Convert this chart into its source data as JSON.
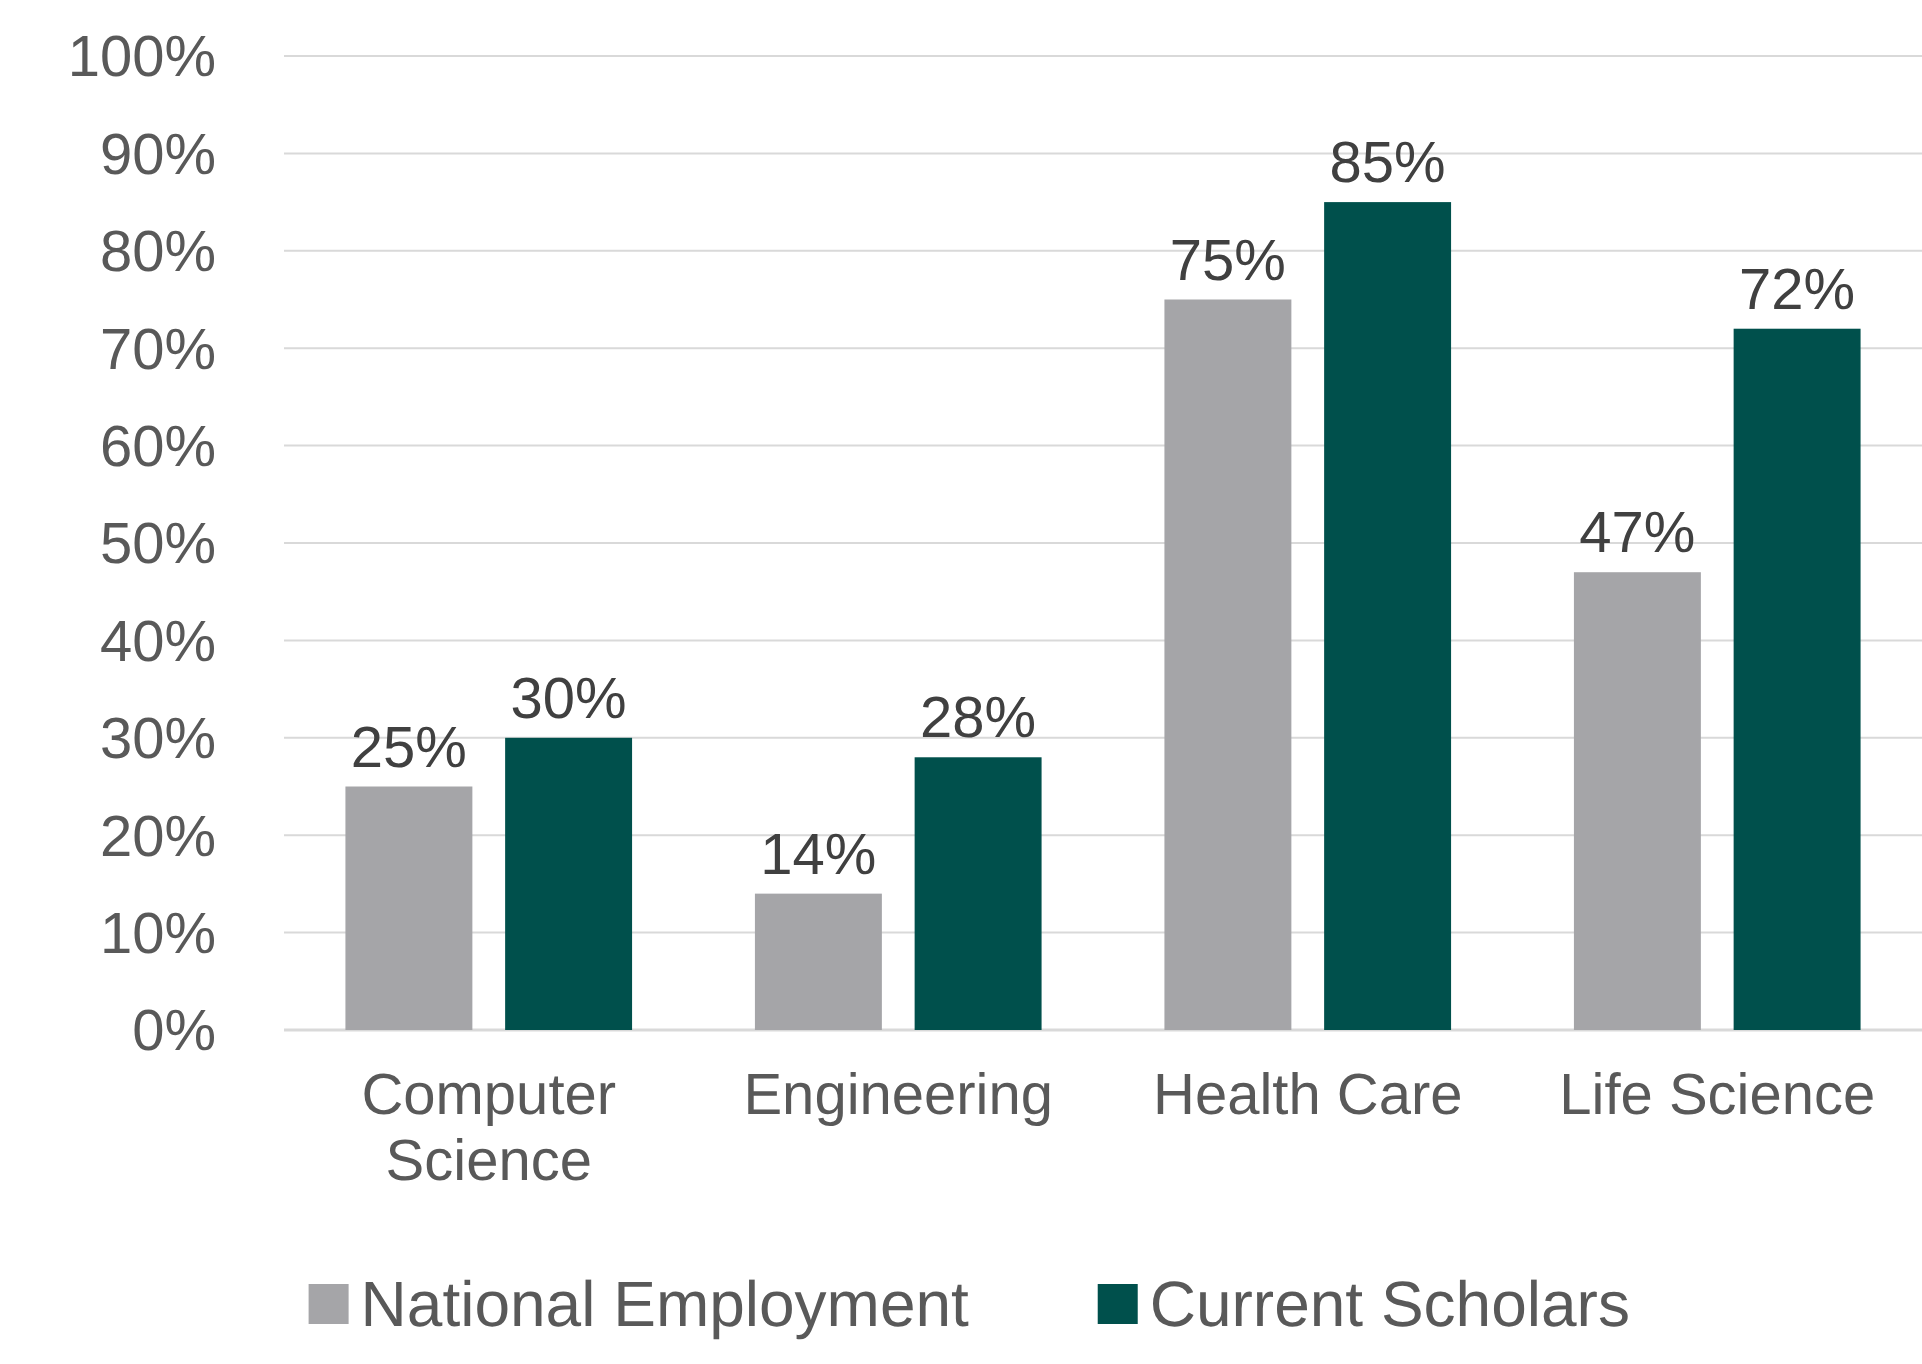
{
  "chart_data": {
    "type": "bar",
    "categories": [
      "Computer Science",
      "Engineering",
      "Health Care",
      "Life Science"
    ],
    "series": [
      {
        "name": "National Employment",
        "color": "#a5a5a8",
        "values": [
          25,
          14,
          75,
          47
        ],
        "value_labels": [
          "25%",
          "14%",
          "75%",
          "47%"
        ]
      },
      {
        "name": "Current Scholars",
        "color": "#00504c",
        "values": [
          30,
          28,
          85,
          72
        ],
        "value_labels": [
          "30%",
          "28%",
          "85%",
          "72%"
        ]
      }
    ],
    "ylim": [
      0,
      100
    ],
    "yticks": [
      {
        "value": 0,
        "label": "0%"
      },
      {
        "value": 10,
        "label": "10%"
      },
      {
        "value": 20,
        "label": "20%"
      },
      {
        "value": 30,
        "label": "30%"
      },
      {
        "value": 40,
        "label": "40%"
      },
      {
        "value": 50,
        "label": "50%"
      },
      {
        "value": 60,
        "label": "60%"
      },
      {
        "value": 70,
        "label": "70%"
      },
      {
        "value": 80,
        "label": "80%"
      },
      {
        "value": 90,
        "label": "90%"
      },
      {
        "value": 100,
        "label": "100%"
      }
    ],
    "grid": "y",
    "legend": "bottom"
  }
}
